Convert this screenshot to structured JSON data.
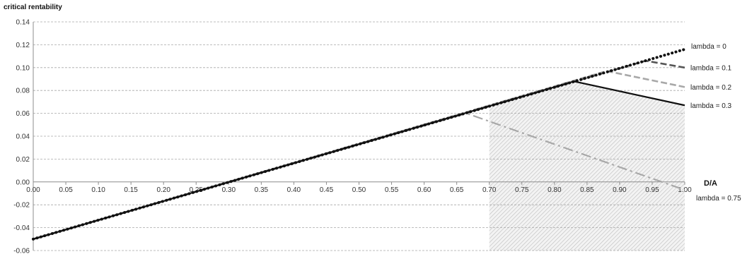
{
  "chart_data": {
    "type": "line",
    "title": "",
    "ylabel": "critical rentability",
    "xlabel": "D/A",
    "xlim": [
      0,
      1
    ],
    "ylim": [
      -0.06,
      0.14
    ],
    "x_ticks": [
      0,
      0.05,
      0.1,
      0.15,
      0.2,
      0.25,
      0.3,
      0.35,
      0.4,
      0.45,
      0.5,
      0.55,
      0.6,
      0.65,
      0.7,
      0.75,
      0.8,
      0.85,
      0.9,
      0.95,
      1.0
    ],
    "x_tick_labels": [
      "0.00",
      "0.05",
      "0.10",
      "0.15",
      "0.20",
      "0.25",
      "0.30",
      "0.35",
      "0.40",
      "0.45",
      "0.50",
      "0.55",
      "0.60",
      "0.65",
      "0.70",
      "0.75",
      "0.80",
      "0.85",
      "0.90",
      "0.95",
      "1.00"
    ],
    "y_ticks": [
      -0.06,
      -0.04,
      -0.02,
      0,
      0.02,
      0.04,
      0.06,
      0.08,
      0.1,
      0.12,
      0.14
    ],
    "y_tick_labels": [
      "-0.06",
      "-0.04",
      "-0.02",
      "0.00",
      "0.02",
      "0.04",
      "0.06",
      "0.08",
      "0.10",
      "0.12",
      "0.14"
    ],
    "grid": true,
    "shaded_region": {
      "x_from": 0.7,
      "x_to": 1.0,
      "color": "#cfcfcf"
    },
    "series": [
      {
        "name": "lambda = 0",
        "style": "dotted",
        "color": "#111111",
        "x": [
          0,
          1.0
        ],
        "y": [
          -0.05,
          0.116
        ]
      },
      {
        "name": "lambda = 0.1",
        "style": "dashed",
        "color": "#555555",
        "x": [
          0,
          0.94,
          1.0
        ],
        "y": [
          -0.05,
          0.106,
          0.1
        ]
      },
      {
        "name": "lambda = 0.2",
        "style": "dashed",
        "color": "#a8a8a8",
        "x": [
          0,
          0.88,
          1.0
        ],
        "y": [
          -0.05,
          0.097,
          0.083
        ]
      },
      {
        "name": "lambda = 0.3",
        "style": "solid",
        "color": "#111111",
        "x": [
          0,
          0.83,
          1.0
        ],
        "y": [
          -0.05,
          0.088,
          0.067
        ]
      },
      {
        "name": "lambda = 0.75",
        "style": "dashdot",
        "color": "#a8a8a8",
        "x": [
          0,
          0.665,
          1.0
        ],
        "y": [
          -0.05,
          0.06,
          -0.007
        ]
      }
    ]
  }
}
